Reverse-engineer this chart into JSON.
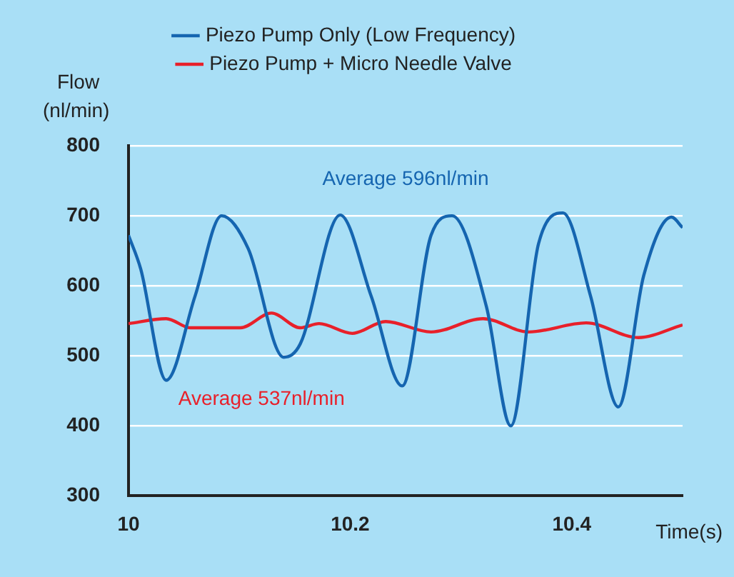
{
  "chart_data": {
    "type": "line",
    "xlabel": "Time(s)",
    "ylabel": "Flow (nl/min)",
    "xlim": [
      10,
      10.5
    ],
    "xticks": [
      10,
      10.2,
      10.4
    ],
    "ylim": [
      300,
      800
    ],
    "yticks": [
      300,
      400,
      500,
      600,
      700,
      800
    ],
    "grid": "y",
    "legend": "top",
    "marker": "none",
    "line_style": "solid",
    "annotations": [
      "Average 596nl/min",
      "Average 537nl/min"
    ],
    "series": [
      {
        "name": "Piezo Pump Only (Low Frequency)",
        "color": "#1565b0",
        "x": [
          10,
          10.011,
          10.034,
          10.06,
          10.084,
          10.108,
          10.14,
          10.155,
          10.191,
          10.219,
          10.247,
          10.273,
          10.292,
          10.323,
          10.345,
          10.37,
          10.392,
          10.417,
          10.442,
          10.465,
          10.49,
          10.5
        ],
        "values": [
          672,
          624,
          465,
          585,
          700,
          653,
          498,
          517,
          701,
          585,
          457,
          672,
          700,
          570,
          400,
          660,
          704,
          585,
          427,
          615,
          698,
          683
        ]
      },
      {
        "name": "Piezo Pump + Micro Needle Valve",
        "color": "#e8202a",
        "x": [
          10,
          10.034,
          10.056,
          10.101,
          10.129,
          10.155,
          10.172,
          10.202,
          10.232,
          10.273,
          10.32,
          10.361,
          10.413,
          10.46,
          10.5
        ],
        "values": [
          546,
          553,
          540,
          540,
          561,
          540,
          546,
          532,
          549,
          534,
          553,
          534,
          547,
          526,
          544
        ]
      }
    ]
  }
}
